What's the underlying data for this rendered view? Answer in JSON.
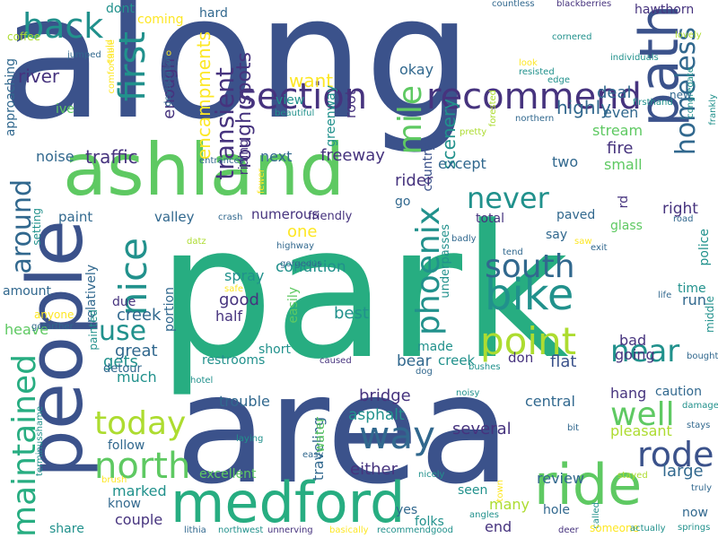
{
  "palette": {
    "dark_blue": "#3b528b",
    "navy": "#46337e",
    "purple": "#440154",
    "blue": "#31688e",
    "teal": "#21918c",
    "green": "#27ad81",
    "lime": "#5ec962",
    "yellow_green": "#addc30",
    "yellow": "#fde725",
    "steel": "#365c8d"
  },
  "words": [
    "along",
    "park",
    "area",
    "ashland",
    "people",
    "medford",
    "ride",
    "path",
    "bike",
    "section",
    "recommend",
    "back",
    "first",
    "point",
    "way",
    "north",
    "today",
    "nice",
    "around",
    "maintained",
    "phoenix",
    "south",
    "homeless",
    "near",
    "well",
    "rode",
    "mile",
    "never",
    "use",
    "transient",
    "rough spots",
    "encampments",
    "enough",
    "want",
    "scenery",
    "highly",
    "deal",
    "even",
    "stream",
    "fire",
    "small",
    "two",
    "except",
    "freeway",
    "next",
    "traffic",
    "river",
    "approaching",
    "noise",
    "coffee",
    "ive",
    "paint",
    "valley",
    "numerous",
    "friendly",
    "one",
    "condition",
    "spray",
    "good",
    "half",
    "creek",
    "due",
    "portion",
    "great",
    "gets",
    "much",
    "follow",
    "trouble",
    "restrooms",
    "short",
    "best",
    "made",
    "bear",
    "flat",
    "going",
    "bad",
    "creek",
    "don",
    "caution",
    "hang",
    "central",
    "pleasant",
    "large",
    "review",
    "either",
    "bridge",
    "asphalt",
    "several",
    "traveling",
    "water",
    "excellent",
    "marked",
    "know",
    "couple",
    "share",
    "seen",
    "many",
    "hole",
    "yes",
    "end",
    "folks",
    "now",
    "called",
    "someone",
    "springs",
    "actually",
    "truly",
    "stays",
    "bought",
    "middle",
    "run",
    "time",
    "police",
    "right",
    "rd",
    "road",
    "glass",
    "paved",
    "say",
    "total",
    "underpasses",
    "easily",
    "relatively",
    "painted",
    "amount",
    "anyone",
    "heave",
    "gofarther",
    "setting",
    "detour",
    "okay",
    "greenway",
    "country",
    "view",
    "beautiful",
    "root",
    "riding",
    "hard",
    "coming",
    "dont",
    "jumped",
    "comfortable",
    "could",
    "devastation",
    "o",
    "countless",
    "blackberries",
    "hawthorn",
    "lovely",
    "cornered",
    "individuals",
    "look",
    "resisted",
    "edge",
    "firsthand",
    "congregate",
    "northern",
    "frankly",
    "forested",
    "pretty",
    "new",
    "life",
    "exit",
    "saw",
    "tend",
    "badly",
    "datz",
    "crash",
    "highway",
    "gorgeous",
    "safe",
    "entrances",
    "fewer",
    "caused",
    "hotel",
    "dog",
    "bushes",
    "bit",
    "damage",
    "stayed",
    "laying",
    "easy",
    "noisy",
    "nicely",
    "town",
    "angles",
    "deer",
    "recommendgood",
    "basically",
    "unnerving",
    "northwest",
    "lithia",
    "terminusshame",
    "brush",
    "rider",
    "go"
  ]
}
